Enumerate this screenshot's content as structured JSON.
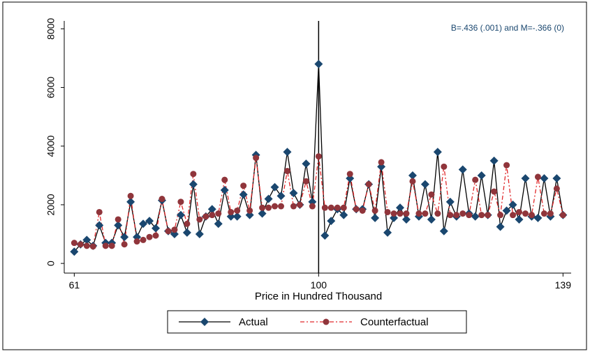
{
  "chart_data": {
    "type": "line",
    "annotation": "B=.436 (.001) and M=-.366 (0)",
    "x_label": "Price in Hundred Thousand",
    "x": [
      61,
      62,
      63,
      64,
      65,
      66,
      67,
      68,
      69,
      70,
      71,
      72,
      73,
      74,
      75,
      76,
      77,
      78,
      79,
      80,
      81,
      82,
      83,
      84,
      85,
      86,
      87,
      88,
      89,
      90,
      91,
      92,
      93,
      94,
      95,
      96,
      97,
      98,
      99,
      100,
      101,
      102,
      103,
      104,
      105,
      106,
      107,
      108,
      109,
      110,
      111,
      112,
      113,
      114,
      115,
      116,
      117,
      118,
      119,
      120,
      121,
      122,
      123,
      124,
      125,
      126,
      127,
      128,
      129,
      130,
      131,
      132,
      133,
      134,
      135,
      136,
      137,
      138,
      139
    ],
    "series": [
      {
        "name": "Actual",
        "color": "#1a476f",
        "marker": "diamond",
        "dash": "solid",
        "values": [
          400,
          650,
          800,
          600,
          1300,
          700,
          700,
          1300,
          900,
          2100,
          900,
          1350,
          1450,
          1200,
          2150,
          1100,
          1000,
          1650,
          1050,
          2700,
          1000,
          1600,
          1850,
          1350,
          2500,
          1600,
          1600,
          2350,
          1650,
          3700,
          1700,
          2200,
          2600,
          2300,
          3800,
          2400,
          2000,
          3400,
          2100,
          6800,
          950,
          1450,
          1850,
          1650,
          2900,
          1850,
          1850,
          2700,
          1550,
          3300,
          1050,
          1550,
          1900,
          1500,
          3000,
          1600,
          2700,
          1500,
          3800,
          1100,
          2100,
          1600,
          3200,
          1700,
          1600,
          3000,
          1650,
          3500,
          1250,
          1800,
          2000,
          1500,
          2900,
          1600,
          1550,
          2900,
          1600,
          2900,
          1650
        ]
      },
      {
        "name": "Counterfactual",
        "color": "#90353b",
        "marker": "circle",
        "dash": "dashdot",
        "values": [
          700,
          650,
          600,
          580,
          1750,
          600,
          600,
          1500,
          650,
          2300,
          750,
          800,
          900,
          950,
          2200,
          1100,
          1150,
          2100,
          1350,
          3050,
          1500,
          1600,
          1650,
          1700,
          2850,
          1750,
          1800,
          2650,
          1800,
          3600,
          1900,
          1900,
          1950,
          1950,
          3150,
          1950,
          2000,
          2800,
          1950,
          3650,
          1900,
          1900,
          1900,
          1900,
          3050,
          1850,
          1800,
          2700,
          1800,
          3450,
          1750,
          1700,
          1700,
          1700,
          2800,
          1700,
          1700,
          2350,
          1700,
          3300,
          1650,
          1650,
          1700,
          1650,
          2850,
          1650,
          1650,
          2450,
          1650,
          3350,
          1650,
          1750,
          1700,
          1650,
          2950,
          1700,
          1700,
          2550,
          1650
        ]
      }
    ],
    "xlim": [
      59.4,
      140.3
    ],
    "ylim": [
      -330,
      8270
    ],
    "xticks": [
      61,
      100,
      139
    ],
    "yticks": [
      0,
      2000,
      4000,
      6000,
      8000
    ],
    "xline": 100,
    "grid": false,
    "legend": "bottom"
  }
}
